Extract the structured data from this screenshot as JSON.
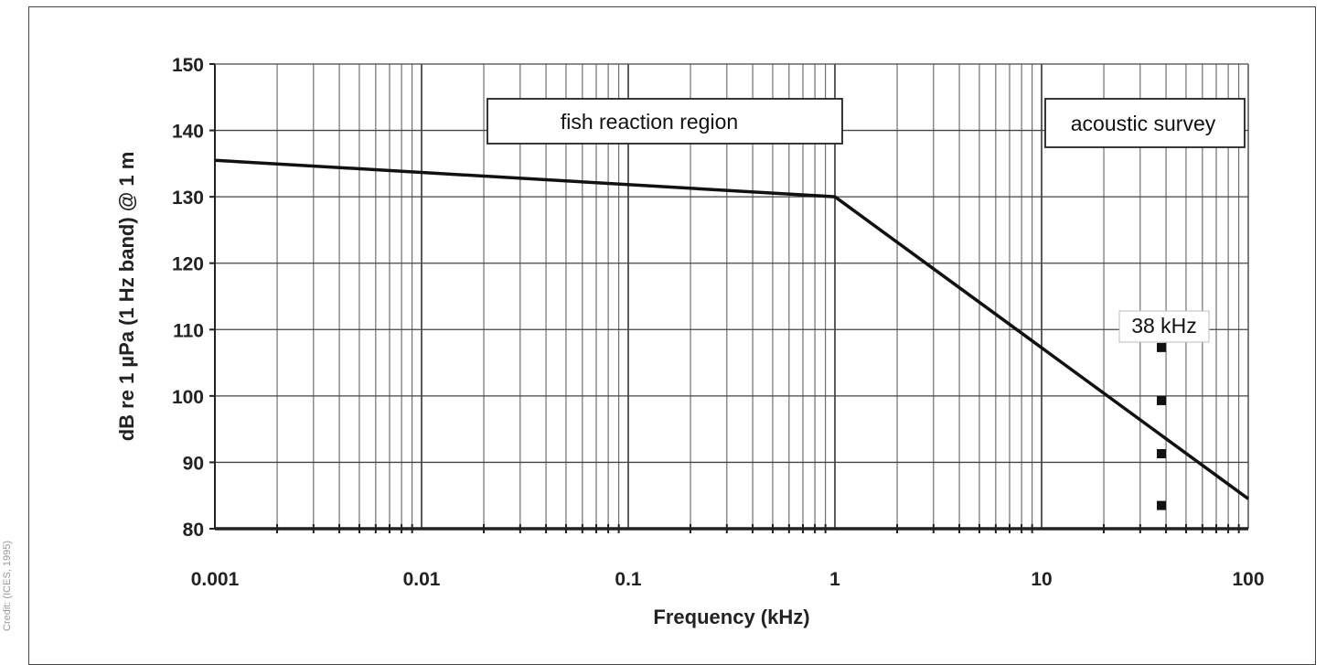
{
  "credit": "Credit: (ICES, 1995)",
  "chart_data": {
    "type": "line",
    "xscale": "log",
    "xlim": [
      0.001,
      100
    ],
    "ylim": [
      80,
      150
    ],
    "xlabel": "Frequency (kHz)",
    "ylabel": "dB re 1 µPa (1 Hz band) @ 1 m",
    "xticks": [
      "0.001",
      "0.01",
      "0.1",
      "1",
      "10",
      "100"
    ],
    "yticks": [
      "80",
      "90",
      "100",
      "110",
      "120",
      "130",
      "140",
      "150"
    ],
    "grid": true,
    "series": [
      {
        "x": [
          0.001,
          1,
          100
        ],
        "y": [
          135.5,
          130,
          84.5
        ]
      }
    ],
    "markers": {
      "x": 38,
      "y": [
        107.3,
        99.3,
        91.3,
        83.5
      ]
    },
    "annotations": [
      {
        "text": "fish reaction region"
      },
      {
        "text": "acoustic survey"
      },
      {
        "text": "38 kHz"
      }
    ]
  }
}
